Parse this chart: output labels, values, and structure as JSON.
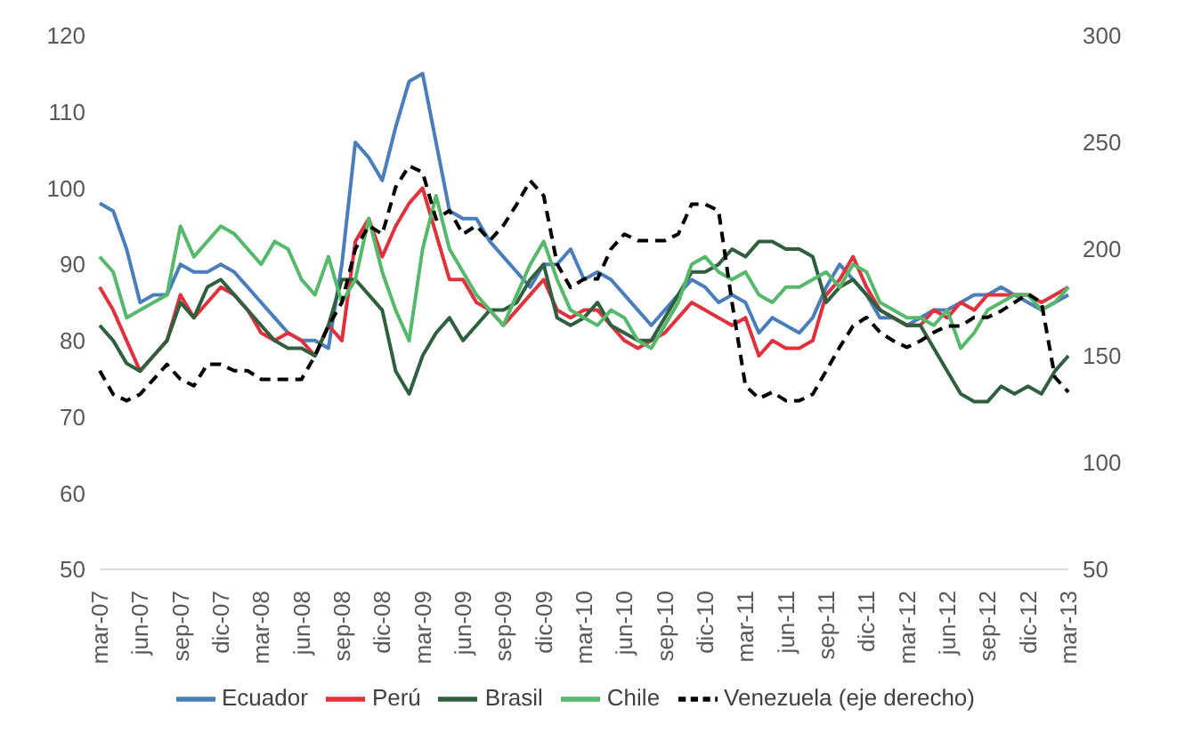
{
  "chart_data": {
    "type": "line",
    "categories": [
      "mar-07",
      null,
      null,
      "jun-07",
      null,
      null,
      "sep-07",
      null,
      null,
      "dic-07",
      null,
      null,
      "mar-08",
      null,
      null,
      "jun-08",
      null,
      null,
      "sep-08",
      null,
      null,
      "dic-08",
      null,
      null,
      "mar-09",
      null,
      null,
      "jun-09",
      null,
      null,
      "sep-09",
      null,
      null,
      "dic-09",
      null,
      null,
      "mar-10",
      null,
      null,
      "jun-10",
      null,
      null,
      "sep-10",
      null,
      null,
      "dic-10",
      null,
      null,
      "mar-11",
      null,
      null,
      "jun-11",
      null,
      null,
      "sep-11",
      null,
      null,
      "dic-11",
      null,
      null,
      "mar-12",
      null,
      null,
      "jun-12",
      null,
      null,
      "sep-12",
      null,
      null,
      "dic-12",
      null,
      null,
      "mar-13"
    ],
    "series": [
      {
        "name": "Ecuador",
        "color": "#4a7ebb",
        "values": [
          98,
          97,
          92,
          85,
          86,
          86,
          90,
          89,
          89,
          90,
          89,
          87,
          85,
          83,
          81,
          80,
          80,
          79,
          90,
          106,
          104,
          101,
          108,
          114,
          115,
          106,
          97,
          96,
          96,
          93,
          91,
          89,
          87,
          90,
          90,
          92,
          88,
          89,
          88,
          86,
          84,
          82,
          84,
          86,
          88,
          87,
          85,
          86,
          85,
          81,
          83,
          82,
          81,
          83,
          87,
          90,
          88,
          86,
          83,
          83,
          82,
          83,
          84,
          84,
          85,
          86,
          86,
          87,
          86,
          85,
          84,
          85,
          86
        ]
      },
      {
        "name": "Perú",
        "color": "#e0313c",
        "values": [
          87,
          84,
          80,
          76,
          78,
          80,
          86,
          83,
          85,
          87,
          86,
          84,
          81,
          80,
          81,
          80,
          78,
          82,
          80,
          93,
          96,
          91,
          95,
          98,
          100,
          94,
          88,
          88,
          85,
          84,
          82,
          84,
          86,
          88,
          84,
          83,
          84,
          84,
          82,
          80,
          79,
          80,
          81,
          83,
          85,
          84,
          83,
          82,
          83,
          78,
          80,
          79,
          79,
          80,
          86,
          88,
          91,
          87,
          84,
          83,
          82,
          82,
          84,
          83,
          85,
          84,
          86,
          86,
          86,
          86,
          85,
          86,
          87
        ]
      },
      {
        "name": "Brasil",
        "color": "#2f5f3f",
        "values": [
          82,
          80,
          77,
          76,
          78,
          80,
          85,
          83,
          87,
          88,
          86,
          84,
          82,
          80,
          79,
          79,
          78,
          82,
          88,
          88,
          86,
          84,
          76,
          73,
          78,
          81,
          83,
          80,
          82,
          84,
          84,
          85,
          88,
          90,
          83,
          82,
          83,
          85,
          82,
          81,
          80,
          80,
          83,
          86,
          89,
          89,
          90,
          92,
          91,
          93,
          93,
          92,
          92,
          91,
          85,
          87,
          88,
          86,
          84,
          83,
          82,
          82,
          79,
          76,
          73,
          72,
          72,
          74,
          73,
          74,
          73,
          76,
          78
        ]
      },
      {
        "name": "Chile",
        "color": "#55b86a",
        "values": [
          91,
          89,
          83,
          84,
          85,
          86,
          95,
          91,
          93,
          95,
          94,
          92,
          90,
          93,
          92,
          88,
          86,
          91,
          85,
          88,
          96,
          89,
          84,
          80,
          92,
          99,
          92,
          89,
          86,
          84,
          82,
          86,
          90,
          93,
          88,
          84,
          83,
          82,
          84,
          83,
          80,
          79,
          82,
          85,
          90,
          91,
          89,
          88,
          89,
          86,
          85,
          87,
          87,
          88,
          89,
          87,
          90,
          89,
          85,
          84,
          83,
          83,
          82,
          84,
          79,
          81,
          84,
          85,
          86,
          86,
          84,
          85,
          87
        ]
      },
      {
        "name": "Venezuela (eje derecho)",
        "color": "#000000",
        "axis": "y2",
        "line_style": "dashed",
        "values": [
          143,
          132,
          129,
          132,
          139,
          146,
          139,
          136,
          146,
          146,
          143,
          143,
          139,
          139,
          139,
          139,
          150,
          164,
          175,
          200,
          211,
          207,
          229,
          239,
          236,
          214,
          218,
          207,
          211,
          204,
          211,
          221,
          232,
          225,
          193,
          182,
          186,
          186,
          200,
          207,
          204,
          204,
          204,
          207,
          221,
          221,
          218,
          175,
          136,
          130,
          133,
          129,
          129,
          132,
          143,
          154,
          164,
          168,
          161,
          157,
          154,
          157,
          161,
          164,
          164,
          168,
          168,
          171,
          175,
          179,
          175,
          140,
          133
        ]
      }
    ],
    "ylim": [
      50,
      120
    ],
    "yticks": [
      50,
      60,
      70,
      80,
      90,
      100,
      110,
      120
    ],
    "y2lim": [
      50,
      300
    ],
    "y2ticks": [
      50,
      100,
      150,
      200,
      250,
      300
    ],
    "grid": false,
    "legend": "bottom",
    "marker": "none",
    "line_style": "solid"
  }
}
